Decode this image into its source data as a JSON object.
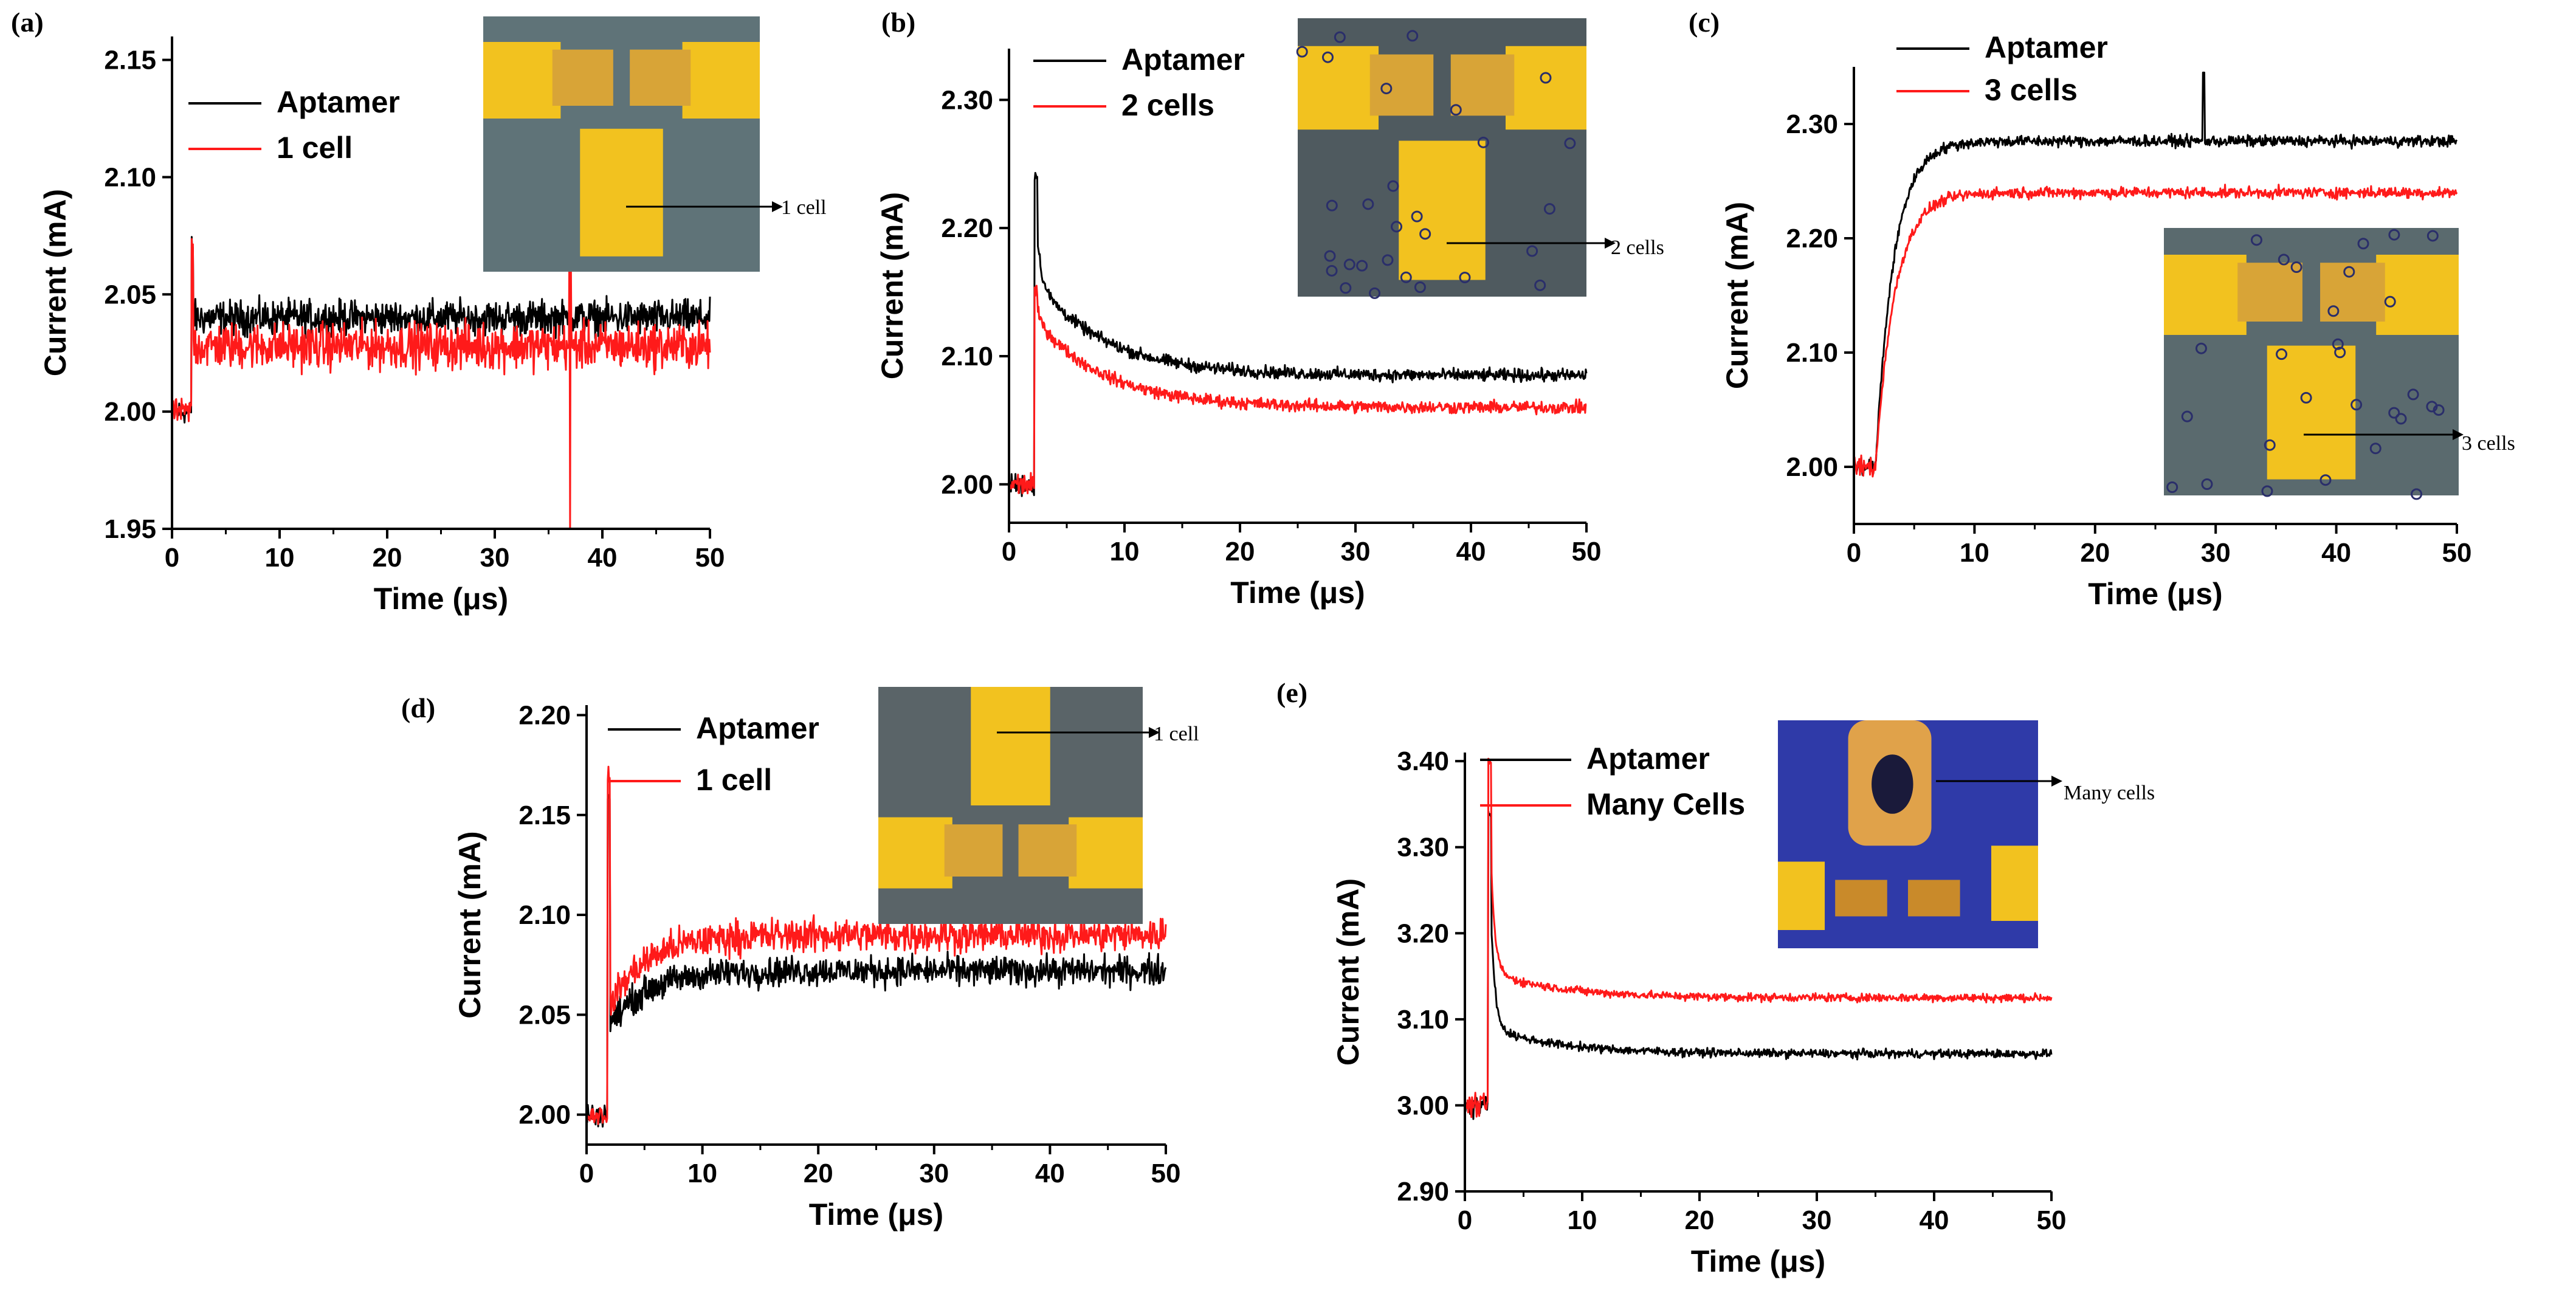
{
  "figure": {
    "note": "Five-panel current vs time figure"
  },
  "colors": {
    "aptamer": "#000000",
    "cells": "#ff1a1a",
    "pad": "#f2c21f",
    "substrate_a": "#5f7378",
    "substrate_e": "#2f3aa8"
  },
  "chart_data": [
    {
      "type": "line",
      "panel": "(a)",
      "xlabel": "Time (μs)",
      "ylabel": "Current (mA)",
      "xlim": [
        0,
        50
      ],
      "ylim": [
        1.95,
        2.16
      ],
      "xticks": [
        0,
        10,
        20,
        30,
        40,
        50
      ],
      "yticks": [
        1.95,
        2.0,
        2.05,
        2.1,
        2.15
      ],
      "ytick_labels": [
        "1.95",
        "2.00",
        "2.05",
        "2.10",
        "2.15"
      ],
      "series": [
        {
          "name": "Aptamer",
          "color": "#000000",
          "baseline": 2.0,
          "step_at": 1.8,
          "level": 2.04,
          "noise": 0.006,
          "spike": 2.07
        },
        {
          "name": "1 cell",
          "color": "#ff1a1a",
          "baseline": 2.0,
          "step_at": 1.8,
          "level": 2.028,
          "noise": 0.008,
          "spike": 2.07,
          "glitch_x": 37,
          "glitch_low": 1.95,
          "glitch_high": 2.08
        }
      ],
      "annotation": "1 cell"
    },
    {
      "type": "line",
      "panel": "(b)",
      "xlabel": "Time (μs)",
      "ylabel": "Current (mA)",
      "xlim": [
        0,
        50
      ],
      "ylim": [
        1.97,
        2.34
      ],
      "xticks": [
        0,
        10,
        20,
        30,
        40,
        50
      ],
      "yticks": [
        2.0,
        2.1,
        2.2,
        2.3
      ],
      "ytick_labels": [
        "2.00",
        "2.10",
        "2.20",
        "2.30"
      ],
      "series": [
        {
          "name": "Aptamer",
          "color": "#000000",
          "baseline": 2.0,
          "step_at": 2.2,
          "peak": 2.24,
          "level": 2.085,
          "decay_amp": 0.075,
          "noise": 0.004
        },
        {
          "name": "2 cells",
          "color": "#ff1a1a",
          "baseline": 2.0,
          "step_at": 2.2,
          "peak": 2.15,
          "level": 2.06,
          "decay_amp": 0.07,
          "noise": 0.004
        }
      ],
      "annotation": "2 cells"
    },
    {
      "type": "line",
      "panel": "(c)",
      "xlabel": "Time (μs)",
      "ylabel": "Current (mA)",
      "xlim": [
        0,
        50
      ],
      "ylim": [
        1.95,
        2.35
      ],
      "xticks": [
        0,
        10,
        20,
        30,
        40,
        50
      ],
      "yticks": [
        2.0,
        2.1,
        2.2,
        2.3
      ],
      "ytick_labels": [
        "2.00",
        "2.10",
        "2.20",
        "2.30"
      ],
      "series": [
        {
          "name": "Aptamer",
          "color": "#000000",
          "baseline": 2.0,
          "step_at": 1.8,
          "rise_tau": 1.5,
          "level": 2.285,
          "noise": 0.004,
          "spike_x": 29,
          "spike": 2.345
        },
        {
          "name": "3 cells",
          "color": "#ff1a1a",
          "baseline": 2.0,
          "step_at": 1.8,
          "rise_tau": 1.6,
          "level": 2.24,
          "noise": 0.004
        }
      ],
      "annotation": "3 cells"
    },
    {
      "type": "line",
      "panel": "(d)",
      "xlabel": "Time (μs)",
      "ylabel": "Current (mA)",
      "xlim": [
        0,
        50
      ],
      "ylim": [
        1.985,
        2.205
      ],
      "xticks": [
        0,
        10,
        20,
        30,
        40,
        50
      ],
      "yticks": [
        2.0,
        2.05,
        2.1,
        2.15,
        2.2
      ],
      "ytick_labels": [
        "2.00",
        "2.05",
        "2.10",
        "2.15",
        "2.20"
      ],
      "series": [
        {
          "name": "Aptamer",
          "color": "#000000",
          "baseline": 2.0,
          "step_at": 1.8,
          "spike": 2.16,
          "dip": 2.045,
          "level": 2.072,
          "noise": 0.006
        },
        {
          "name": "1 cell",
          "color": "#ff1a1a",
          "baseline": 2.0,
          "step_at": 1.8,
          "spike": 2.165,
          "dip": 2.055,
          "level": 2.09,
          "noise": 0.007
        }
      ],
      "annotation": "1 cell"
    },
    {
      "type": "line",
      "panel": "(e)",
      "xlabel": "Time (μs)",
      "ylabel": "Current (mA)",
      "xlim": [
        0,
        50
      ],
      "ylim": [
        2.9,
        3.41
      ],
      "xticks": [
        0,
        10,
        20,
        30,
        40,
        50
      ],
      "yticks": [
        2.9,
        3.0,
        3.1,
        3.2,
        3.3,
        3.4
      ],
      "ytick_labels": [
        "2.90",
        "3.00",
        "3.10",
        "3.20",
        "3.30",
        "3.40"
      ],
      "series": [
        {
          "name": "Aptamer",
          "color": "#000000",
          "baseline": 3.0,
          "step_at": 2.0,
          "peak": 3.34,
          "level": 3.06,
          "decay_amp": 0.03,
          "noise": 0.004
        },
        {
          "name": "Many Cells",
          "color": "#ff1a1a",
          "baseline": 3.0,
          "step_at": 2.0,
          "peak": 3.4,
          "level": 3.125,
          "decay_amp": 0.03,
          "noise": 0.004
        }
      ],
      "annotation": "Many cells"
    }
  ]
}
